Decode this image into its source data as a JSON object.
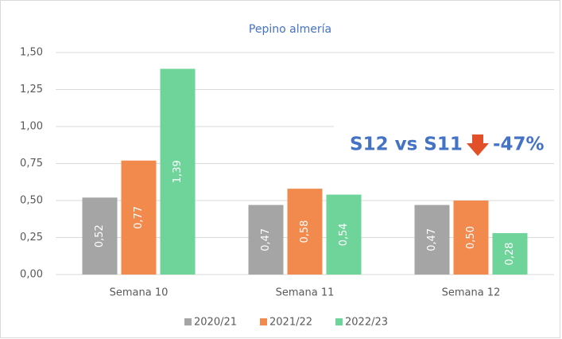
{
  "chart_data": {
    "type": "bar",
    "title": "Pepino almería",
    "categories": [
      "Semana 10",
      "Semana 11",
      "Semana 12"
    ],
    "series": [
      {
        "name": "2020/21",
        "color": "#a5a5a5",
        "values": [
          0.52,
          0.47,
          0.47
        ],
        "value_labels": [
          "0,52",
          "0,47",
          "0,47"
        ]
      },
      {
        "name": "2021/22",
        "color": "#f28a4e",
        "values": [
          0.77,
          0.58,
          0.5
        ],
        "value_labels": [
          "0,77",
          "0,58",
          "0,50"
        ]
      },
      {
        "name": "2022/23",
        "color": "#6fd49a",
        "values": [
          1.39,
          0.54,
          0.28
        ],
        "value_labels": [
          "1,39",
          "0,54",
          "0,28"
        ]
      }
    ],
    "ylim": [
      0,
      1.5
    ],
    "yticks": [
      {
        "value": 0,
        "label": "0,00"
      },
      {
        "value": 0.25,
        "label": "0,25"
      },
      {
        "value": 0.5,
        "label": "0,50"
      },
      {
        "value": 0.75,
        "label": "0,75"
      },
      {
        "value": 1,
        "label": "1,00"
      },
      {
        "value": 1.25,
        "label": "1,25"
      },
      {
        "value": 1.5,
        "label": "1,50"
      }
    ],
    "grid": true,
    "legend": "bottom",
    "annotations": [
      "S12 vs S11",
      "-47%"
    ]
  }
}
